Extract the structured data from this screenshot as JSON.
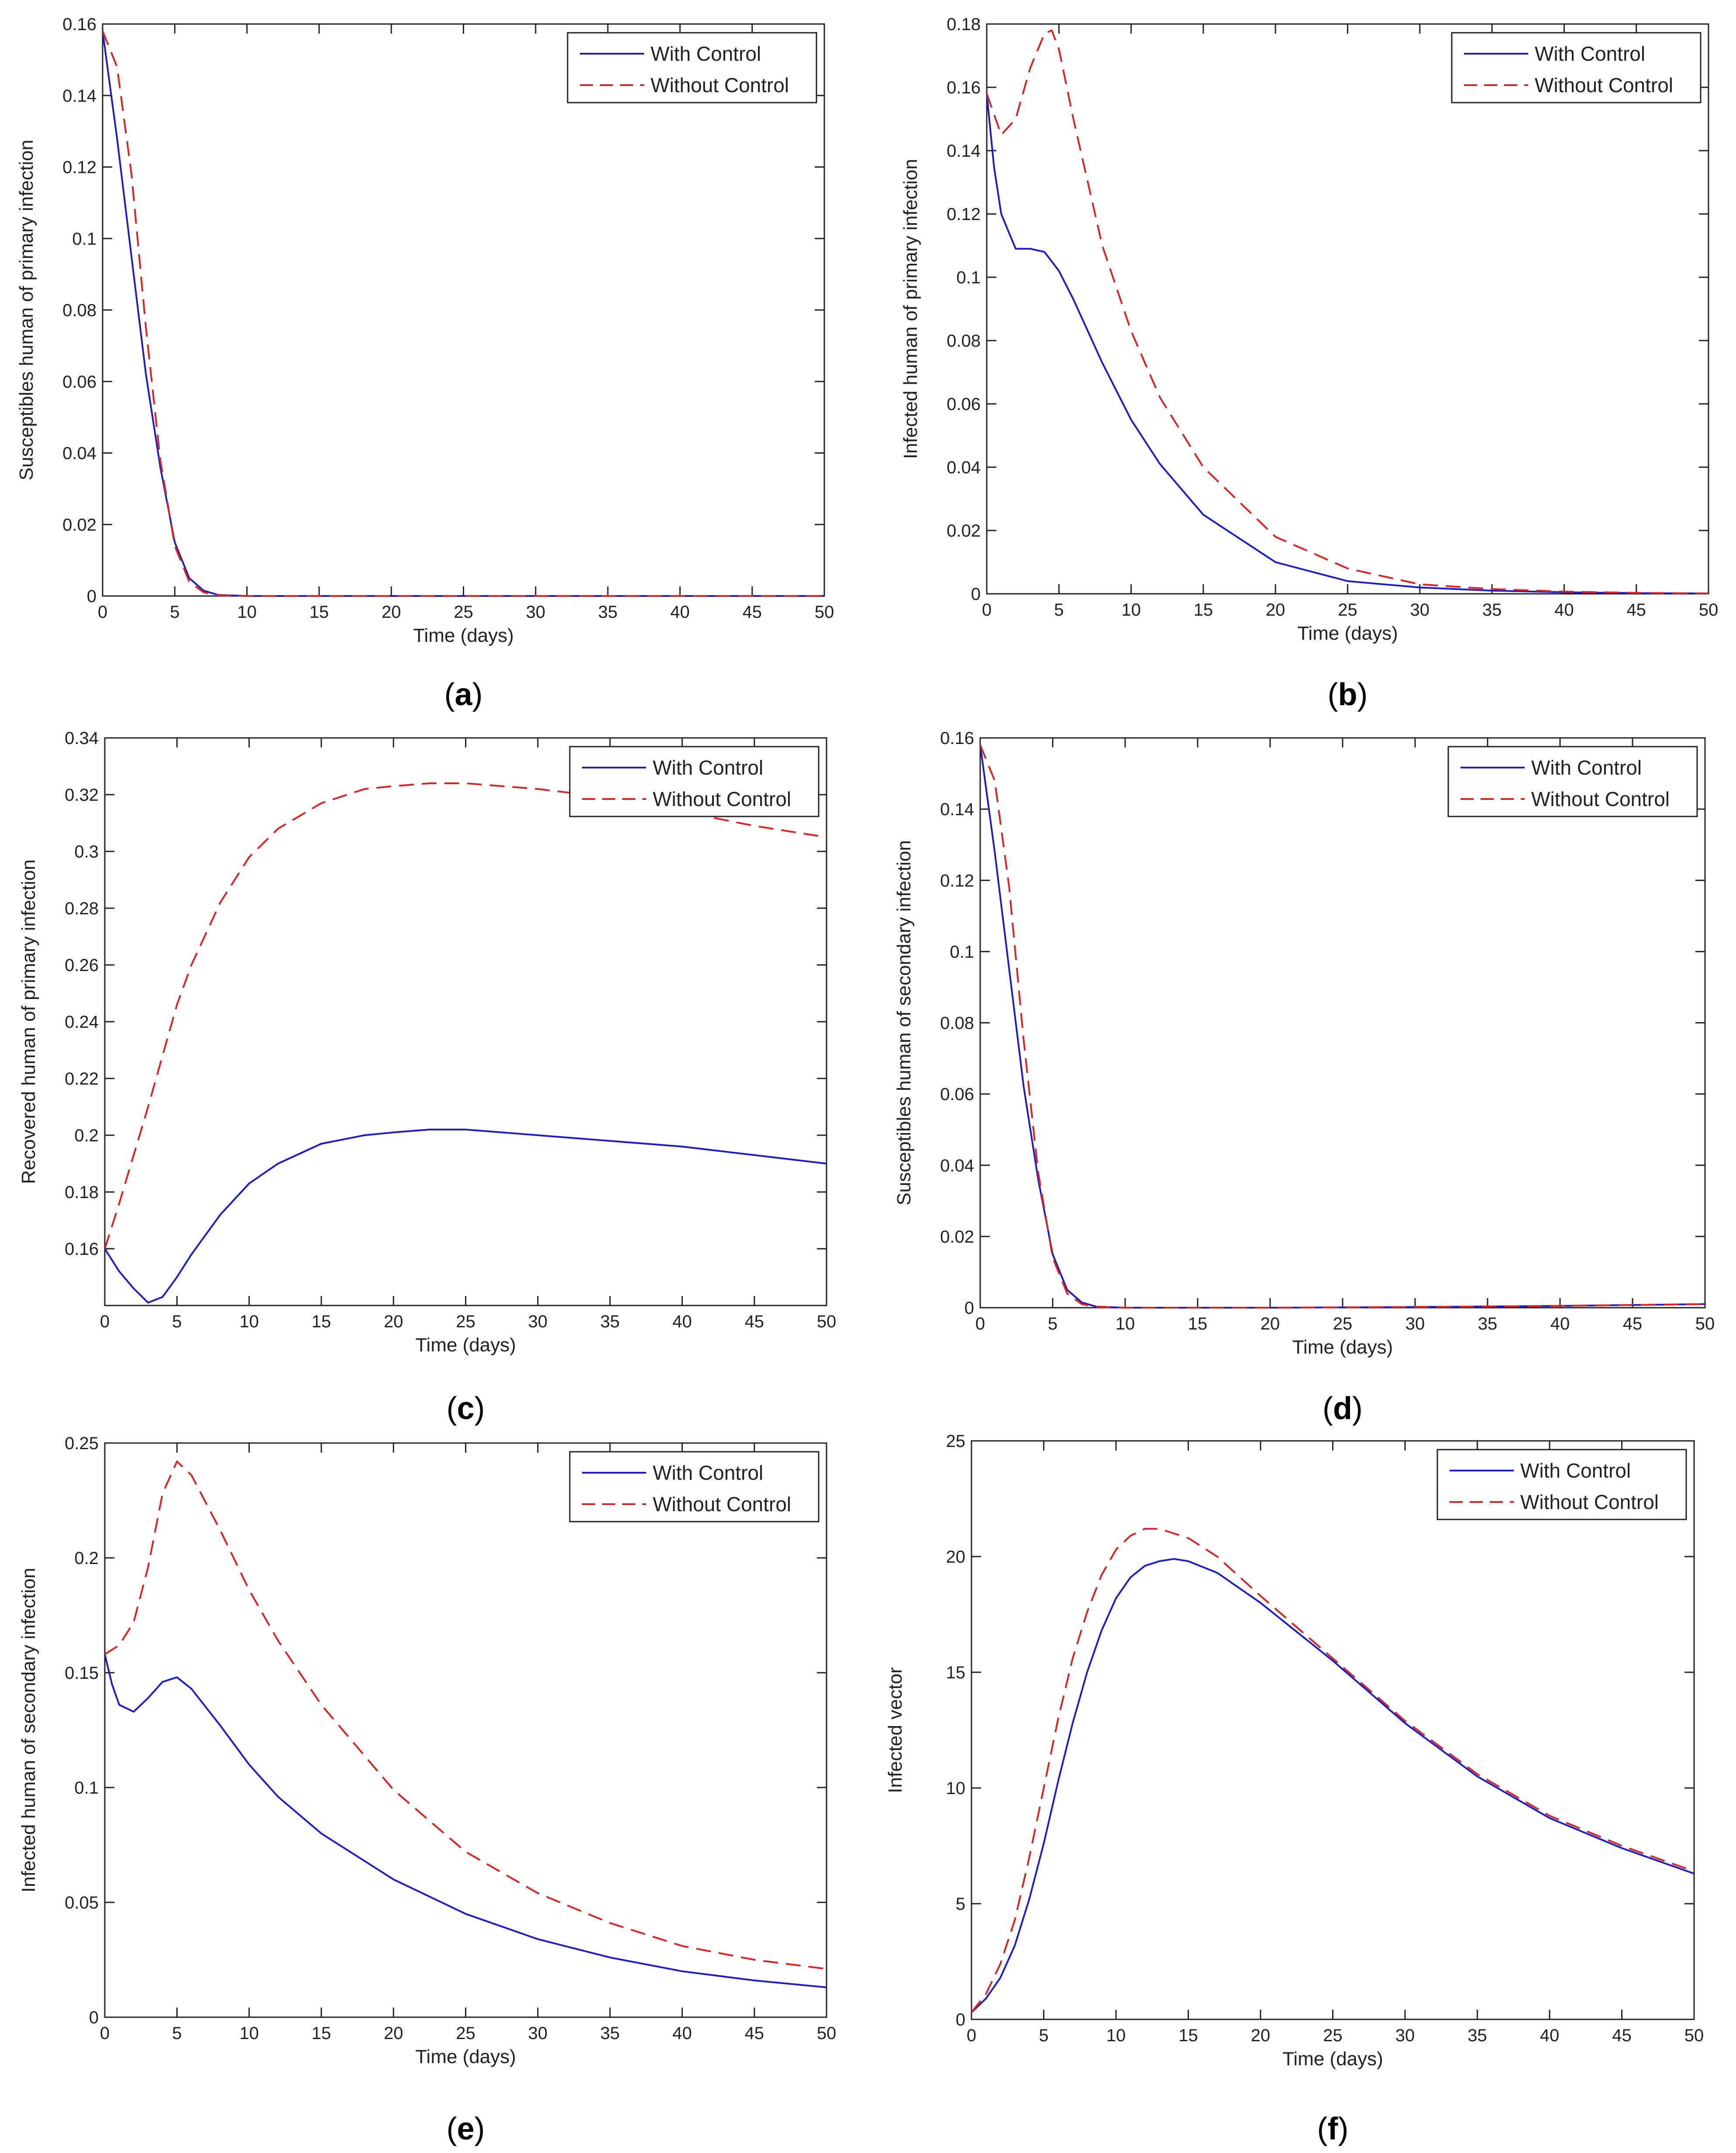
{
  "chart_data": [
    {
      "id": "a",
      "type": "line",
      "caption_letter": "a",
      "xlabel": "Time (days)",
      "ylabel": "Susceptibles human of primary infection",
      "xlim": [
        0,
        50
      ],
      "ylim": [
        0,
        0.16
      ],
      "xticks": [
        0,
        5,
        10,
        15,
        20,
        25,
        30,
        35,
        40,
        45,
        50
      ],
      "yticks": [
        0,
        0.02,
        0.04,
        0.06,
        0.08,
        0.1,
        0.12,
        0.14,
        0.16
      ],
      "ytick_labels": [
        "0",
        "0.02",
        "0.04",
        "0.06",
        "0.08",
        "0.1",
        "0.12",
        "0.14",
        "0.16"
      ],
      "legend": "top-right",
      "series": [
        {
          "name": "With Control",
          "color": "#1c1ccc",
          "dash": "solid",
          "x": [
            0,
            1,
            2,
            3,
            4,
            5,
            6,
            7,
            8,
            10,
            15,
            20,
            30,
            40,
            50
          ],
          "y": [
            0.158,
            0.128,
            0.095,
            0.062,
            0.036,
            0.015,
            0.005,
            0.0015,
            0.0003,
            0,
            0,
            0,
            0,
            0,
            0
          ]
        },
        {
          "name": "Without Control",
          "color": "#dd2222",
          "dash": "dashed",
          "x": [
            0,
            1,
            2,
            3,
            4,
            5,
            6,
            7,
            8,
            10,
            15,
            20,
            30,
            40,
            50
          ],
          "y": [
            0.158,
            0.148,
            0.118,
            0.075,
            0.038,
            0.014,
            0.004,
            0.001,
            0.0002,
            0,
            0,
            0,
            0,
            0,
            0
          ]
        }
      ]
    },
    {
      "id": "b",
      "type": "line",
      "caption_letter": "b",
      "xlabel": "Time (days)",
      "ylabel": "Infected human of primary infection",
      "xlim": [
        0,
        50
      ],
      "ylim": [
        0,
        0.18
      ],
      "xticks": [
        0,
        5,
        10,
        15,
        20,
        25,
        30,
        35,
        40,
        45,
        50
      ],
      "yticks": [
        0,
        0.02,
        0.04,
        0.06,
        0.08,
        0.1,
        0.12,
        0.14,
        0.16,
        0.18
      ],
      "ytick_labels": [
        "0",
        "0.02",
        "0.04",
        "0.06",
        "0.08",
        "0.1",
        "0.12",
        "0.14",
        "0.16",
        "0.18"
      ],
      "legend": "top-right",
      "series": [
        {
          "name": "With Control",
          "color": "#1c1ccc",
          "dash": "solid",
          "x": [
            0,
            0.5,
            1,
            2,
            3,
            4,
            5,
            6,
            8,
            10,
            12,
            15,
            20,
            25,
            30,
            35,
            40,
            45,
            50
          ],
          "y": [
            0.158,
            0.135,
            0.12,
            0.109,
            0.109,
            0.108,
            0.102,
            0.093,
            0.073,
            0.055,
            0.041,
            0.025,
            0.01,
            0.004,
            0.002,
            0.001,
            0.0005,
            0.0002,
            0.0001
          ]
        },
        {
          "name": "Without Control",
          "color": "#dd2222",
          "dash": "dashed",
          "x": [
            0,
            1,
            2,
            3,
            4,
            4.5,
            5,
            6,
            8,
            10,
            12,
            15,
            20,
            25,
            30,
            35,
            40,
            45,
            50
          ],
          "y": [
            0.158,
            0.145,
            0.15,
            0.166,
            0.177,
            0.178,
            0.172,
            0.15,
            0.11,
            0.083,
            0.062,
            0.04,
            0.018,
            0.008,
            0.003,
            0.0015,
            0.0007,
            0.0003,
            0.0001
          ]
        }
      ]
    },
    {
      "id": "c",
      "type": "line",
      "caption_letter": "c",
      "xlabel": "Time (days)",
      "ylabel": "Recovered human of primary infection",
      "xlim": [
        0,
        50
      ],
      "ylim": [
        0.14,
        0.34
      ],
      "xticks": [
        0,
        5,
        10,
        15,
        20,
        25,
        30,
        35,
        40,
        45,
        50
      ],
      "yticks": [
        0.16,
        0.18,
        0.2,
        0.22,
        0.24,
        0.26,
        0.28,
        0.3,
        0.32,
        0.34
      ],
      "ytick_labels": [
        "0.16",
        "0.18",
        "0.2",
        "0.22",
        "0.24",
        "0.26",
        "0.28",
        "0.3",
        "0.32",
        "0.34"
      ],
      "legend": "top-right",
      "series": [
        {
          "name": "With Control",
          "color": "#1c1ccc",
          "dash": "solid",
          "x": [
            0,
            1,
            2,
            3,
            4,
            5,
            6,
            8,
            10,
            12,
            15,
            18,
            20,
            22.5,
            25,
            30,
            35,
            40,
            45,
            50
          ],
          "y": [
            0.16,
            0.152,
            0.146,
            0.141,
            0.143,
            0.15,
            0.158,
            0.172,
            0.183,
            0.19,
            0.197,
            0.2,
            0.201,
            0.202,
            0.202,
            0.2,
            0.198,
            0.196,
            0.193,
            0.19
          ]
        },
        {
          "name": "Without Control",
          "color": "#dd2222",
          "dash": "dashed",
          "x": [
            0,
            1,
            2,
            3,
            4,
            5,
            6,
            8,
            10,
            12,
            15,
            18,
            20,
            22.5,
            25,
            30,
            35,
            40,
            45,
            50
          ],
          "y": [
            0.16,
            0.176,
            0.193,
            0.21,
            0.228,
            0.246,
            0.26,
            0.282,
            0.298,
            0.308,
            0.317,
            0.322,
            0.323,
            0.324,
            0.324,
            0.322,
            0.319,
            0.314,
            0.309,
            0.305
          ]
        }
      ]
    },
    {
      "id": "d",
      "type": "line",
      "caption_letter": "d",
      "xlabel": "Time (days)",
      "ylabel": "Susceptibles human of secondary infection",
      "xlim": [
        0,
        50
      ],
      "ylim": [
        0,
        0.16
      ],
      "xticks": [
        0,
        5,
        10,
        15,
        20,
        25,
        30,
        35,
        40,
        45,
        50
      ],
      "yticks": [
        0,
        0.02,
        0.04,
        0.06,
        0.08,
        0.1,
        0.12,
        0.14,
        0.16
      ],
      "ytick_labels": [
        "0",
        "0.02",
        "0.04",
        "0.06",
        "0.08",
        "0.1",
        "0.12",
        "0.14",
        "0.16"
      ],
      "legend": "top-right",
      "series": [
        {
          "name": "With Control",
          "color": "#1c1ccc",
          "dash": "solid",
          "x": [
            0,
            1,
            2,
            3,
            4,
            5,
            6,
            7,
            8,
            10,
            15,
            20,
            30,
            40,
            50
          ],
          "y": [
            0.158,
            0.128,
            0.095,
            0.062,
            0.036,
            0.015,
            0.005,
            0.0015,
            0.0003,
            0,
            0,
            0,
            0.0002,
            0.0005,
            0.001
          ]
        },
        {
          "name": "Without Control",
          "color": "#dd2222",
          "dash": "dashed",
          "x": [
            0,
            1,
            2,
            3,
            4,
            5,
            6,
            7,
            8,
            10,
            15,
            20,
            30,
            40,
            50
          ],
          "y": [
            0.158,
            0.148,
            0.118,
            0.075,
            0.038,
            0.014,
            0.004,
            0.001,
            0.0002,
            0,
            0,
            0,
            0.0002,
            0.0005,
            0.001
          ]
        }
      ]
    },
    {
      "id": "e",
      "type": "line",
      "caption_letter": "e",
      "xlabel": "Time (days)",
      "ylabel": "Infected human of secondary infection",
      "xlim": [
        0,
        50
      ],
      "ylim": [
        0,
        0.25
      ],
      "xticks": [
        0,
        5,
        10,
        15,
        20,
        25,
        30,
        35,
        40,
        45,
        50
      ],
      "yticks": [
        0,
        0.05,
        0.1,
        0.15,
        0.2,
        0.25
      ],
      "ytick_labels": [
        "0",
        "0.05",
        "0.1",
        "0.15",
        "0.2",
        "0.25"
      ],
      "legend": "top-right",
      "series": [
        {
          "name": "With Control",
          "color": "#1c1ccc",
          "dash": "solid",
          "x": [
            0,
            0.5,
            1,
            2,
            3,
            4,
            5,
            6,
            8,
            10,
            12,
            15,
            20,
            25,
            30,
            35,
            40,
            45,
            50
          ],
          "y": [
            0.158,
            0.145,
            0.136,
            0.133,
            0.139,
            0.146,
            0.148,
            0.143,
            0.127,
            0.11,
            0.096,
            0.08,
            0.06,
            0.045,
            0.034,
            0.026,
            0.02,
            0.016,
            0.013
          ]
        },
        {
          "name": "Without Control",
          "color": "#dd2222",
          "dash": "dashed",
          "x": [
            0,
            1,
            2,
            3,
            4,
            5,
            6,
            8,
            10,
            12,
            15,
            20,
            25,
            30,
            35,
            40,
            45,
            50
          ],
          "y": [
            0.158,
            0.162,
            0.172,
            0.196,
            0.228,
            0.242,
            0.236,
            0.212,
            0.186,
            0.164,
            0.136,
            0.099,
            0.072,
            0.054,
            0.041,
            0.031,
            0.025,
            0.021
          ]
        }
      ]
    },
    {
      "id": "f",
      "type": "line",
      "caption_letter": "f",
      "xlabel": "Time (days)",
      "ylabel": "Infected vector",
      "xlim": [
        0,
        50
      ],
      "ylim": [
        0,
        25
      ],
      "xticks": [
        0,
        5,
        10,
        15,
        20,
        25,
        30,
        35,
        40,
        45,
        50
      ],
      "yticks": [
        0,
        5,
        10,
        15,
        20,
        25
      ],
      "ytick_labels": [
        "0",
        "5",
        "10",
        "15",
        "20",
        "25"
      ],
      "legend": "top-right",
      "series": [
        {
          "name": "With Control",
          "color": "#1c1ccc",
          "dash": "solid",
          "x": [
            0,
            1,
            2,
            3,
            4,
            5,
            6,
            7,
            8,
            9,
            10,
            11,
            12,
            13,
            14,
            15,
            17,
            20,
            25,
            30,
            35,
            40,
            45,
            50
          ],
          "y": [
            0.3,
            0.9,
            1.8,
            3.2,
            5.2,
            7.6,
            10.3,
            12.8,
            15.0,
            16.8,
            18.2,
            19.1,
            19.6,
            19.8,
            19.9,
            19.8,
            19.3,
            18.0,
            15.5,
            12.8,
            10.5,
            8.7,
            7.4,
            6.3
          ]
        },
        {
          "name": "Without Control",
          "color": "#dd2222",
          "dash": "dashed",
          "x": [
            0,
            1,
            2,
            3,
            4,
            5,
            6,
            7,
            8,
            9,
            10,
            11,
            12,
            13,
            14,
            15,
            17,
            20,
            25,
            30,
            35,
            40,
            45,
            50
          ],
          "y": [
            0.3,
            1.1,
            2.4,
            4.3,
            7.0,
            10.0,
            13.0,
            15.6,
            17.6,
            19.2,
            20.3,
            20.9,
            21.2,
            21.2,
            21.0,
            20.8,
            20.0,
            18.3,
            15.6,
            12.9,
            10.6,
            8.8,
            7.5,
            6.4
          ]
        }
      ]
    }
  ]
}
